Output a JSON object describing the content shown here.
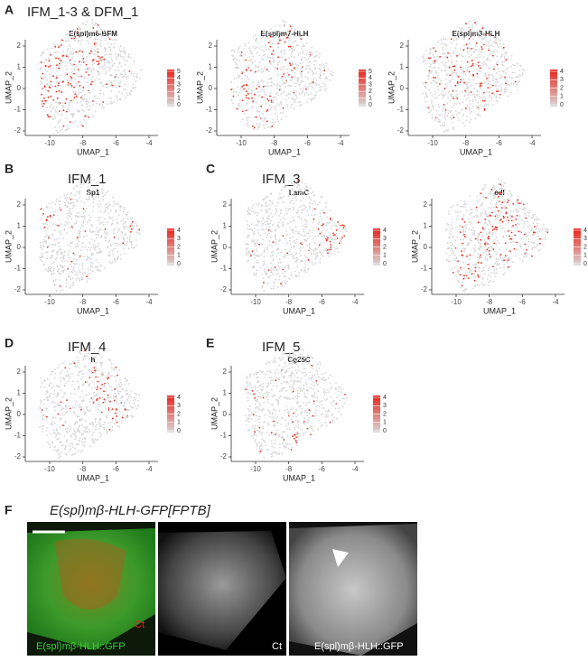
{
  "figure": {
    "panels": [
      {
        "label": "A",
        "heading": "IFM_1-3 & DFM_1",
        "plots": [
          {
            "title": "E(spl)m6-BFM",
            "xlabel": "UMAP_1",
            "ylabel": "UMAP_2",
            "xticks": [
              -10,
              -8,
              -6,
              -4
            ],
            "yticks": [
              2,
              1,
              0,
              -1,
              -2
            ],
            "scale": [
              5,
              4,
              3,
              2,
              1,
              0
            ]
          },
          {
            "title": "E(spl)m7-HLH",
            "xlabel": "UMAP_1",
            "ylabel": "UMAP_2",
            "xticks": [
              -10,
              -8,
              -6,
              -4
            ],
            "yticks": [
              2,
              1,
              0,
              -1,
              -2
            ],
            "scale": [
              5,
              4,
              3,
              2,
              1,
              0
            ]
          },
          {
            "title": "E(spl)m3-HLH",
            "xlabel": "UMAP_1",
            "ylabel": "UMAP_2",
            "xticks": [
              -10,
              -8,
              -6,
              -4
            ],
            "yticks": [
              2,
              1,
              0,
              -1,
              -2
            ],
            "scale": [
              4,
              3,
              2,
              1,
              0
            ]
          }
        ]
      },
      {
        "label": "B",
        "heading": "IFM_1",
        "plots": [
          {
            "title": "Sp1",
            "xlabel": "UMAP_1",
            "ylabel": "UMAP_2",
            "xticks": [
              -10,
              -8,
              -6,
              -4
            ],
            "yticks": [
              2,
              1,
              0,
              -1,
              -2
            ],
            "scale": [
              4,
              3,
              2,
              1,
              0
            ]
          }
        ]
      },
      {
        "label": "C",
        "heading": "IFM_3",
        "plots": [
          {
            "title": "LamC",
            "xlabel": "UMAP_1",
            "ylabel": "UMAP_2",
            "xticks": [
              -10,
              -8,
              -6,
              -4
            ],
            "yticks": [
              2,
              1,
              0,
              -1,
              -2
            ],
            "scale": [
              4,
              3,
              2,
              1,
              0
            ]
          },
          {
            "title": "edl",
            "xlabel": "UMAP_1",
            "ylabel": "UMAP_2",
            "xticks": [
              -10,
              -8,
              -6,
              -4
            ],
            "yticks": [
              2,
              1,
              0,
              -1,
              -2
            ],
            "scale": [
              4,
              3,
              2,
              1,
              0
            ]
          }
        ]
      },
      {
        "label": "D",
        "heading": "IFM_4",
        "plots": [
          {
            "title": "h",
            "xlabel": "UMAP_1",
            "ylabel": "UMAP_2",
            "xticks": [
              -10,
              -8,
              -6,
              -4
            ],
            "yticks": [
              2,
              1,
              0,
              -1,
              -2
            ],
            "scale": [
              4,
              3,
              2,
              1,
              0
            ]
          }
        ]
      },
      {
        "label": "E",
        "heading": "IFM_5",
        "plots": [
          {
            "title": "Cg25C",
            "xlabel": "UMAP_1",
            "ylabel": "UMAP_2",
            "xticks": [
              -10,
              -8,
              -6,
              -4
            ],
            "yticks": [
              2,
              1,
              0,
              -1,
              -2
            ],
            "scale": [
              4,
              3,
              2,
              1,
              0
            ]
          }
        ]
      }
    ],
    "imaging": {
      "label": "F",
      "title": "E(spl)mβ-HLH-GFP[FPTB]",
      "captions": [
        "Ct",
        "E(spl)mβ-HLH::GFP",
        "Ct",
        "E(spl)mβ-HLH::GFP"
      ]
    }
  }
}
